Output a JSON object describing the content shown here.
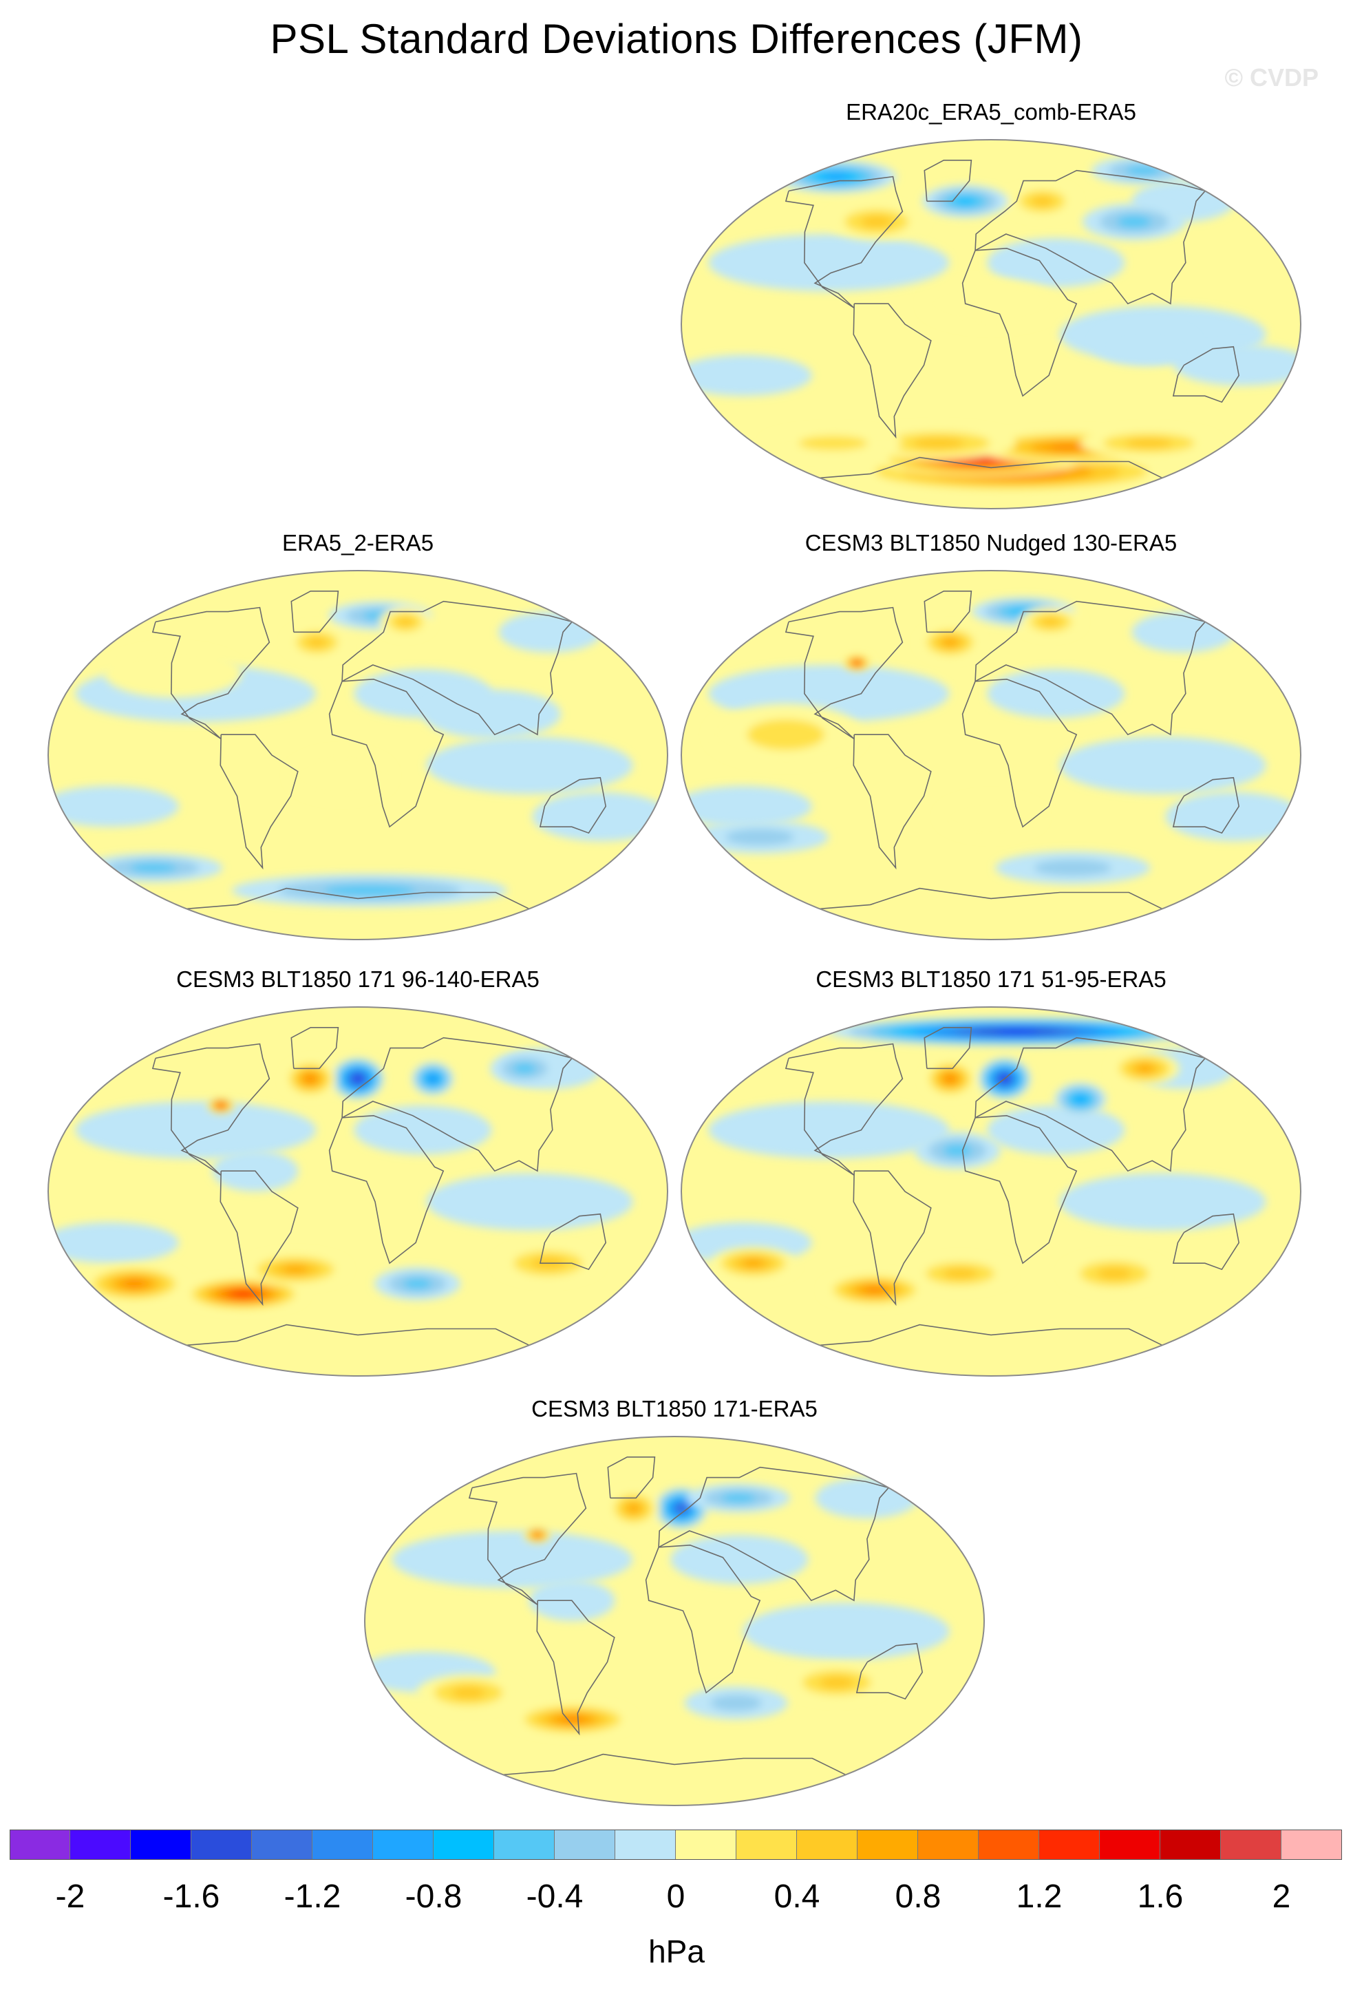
{
  "figure": {
    "title": "PSL Standard Deviations Differences (JFM)",
    "watermark": "© CVDP",
    "units": "hPa"
  },
  "panels": [
    {
      "id": "p1",
      "title": "ERA20c_ERA5_comb-ERA5",
      "blobs": [
        {
          "lon": 20,
          "lat": -72,
          "rx": 95,
          "ry": 10,
          "level": 1.2
        },
        {
          "lon": -10,
          "lat": -66,
          "rx": 60,
          "ry": 8,
          "level": 1.6
        },
        {
          "lon": 60,
          "lat": -60,
          "rx": 55,
          "ry": 8,
          "level": 0.9
        },
        {
          "lon": -40,
          "lat": -58,
          "rx": 45,
          "ry": 8,
          "level": 0.7
        },
        {
          "lon": 120,
          "lat": -58,
          "rx": 40,
          "ry": 7,
          "level": 0.5
        },
        {
          "lon": -120,
          "lat": -58,
          "rx": 40,
          "ry": 7,
          "level": 0.4
        },
        {
          "lon": -150,
          "lat": 72,
          "rx": 35,
          "ry": 8,
          "level": -0.9
        },
        {
          "lon": 160,
          "lat": 75,
          "rx": 30,
          "ry": 7,
          "level": -0.7
        },
        {
          "lon": -20,
          "lat": 60,
          "rx": 25,
          "ry": 8,
          "level": -0.8
        },
        {
          "lon": -80,
          "lat": 50,
          "rx": 28,
          "ry": 9,
          "level": 0.5
        },
        {
          "lon": 100,
          "lat": 50,
          "rx": 30,
          "ry": 9,
          "level": -0.5
        },
        {
          "lon": 40,
          "lat": 60,
          "rx": 20,
          "ry": 8,
          "level": 0.6
        },
        {
          "lon": 150,
          "lat": -20,
          "rx": 40,
          "ry": 10,
          "level": -0.3
        },
        {
          "lon": 0,
          "lat": 10,
          "rx": 40,
          "ry": 12,
          "level": 0.3
        },
        {
          "lon": 90,
          "lat": -10,
          "rx": 30,
          "ry": 10,
          "level": -0.3
        }
      ]
    },
    {
      "id": "p2",
      "title": "ERA5_2-ERA5",
      "blobs": [
        {
          "lon": -30,
          "lat": 55,
          "rx": 18,
          "ry": 8,
          "level": 0.7
        },
        {
          "lon": 20,
          "lat": 68,
          "rx": 30,
          "ry": 7,
          "level": -0.5
        },
        {
          "lon": 40,
          "lat": 65,
          "rx": 15,
          "ry": 7,
          "level": 0.6
        },
        {
          "lon": 10,
          "lat": -66,
          "rx": 80,
          "ry": 8,
          "level": -0.5
        },
        {
          "lon": -120,
          "lat": 40,
          "rx": 40,
          "ry": 12,
          "level": 0.3
        },
        {
          "lon": 150,
          "lat": -30,
          "rx": 40,
          "ry": 12,
          "level": -0.3
        },
        {
          "lon": -10,
          "lat": -10,
          "rx": 30,
          "ry": 12,
          "level": 0.3
        },
        {
          "lon": 80,
          "lat": 20,
          "rx": 40,
          "ry": 12,
          "level": -0.3
        },
        {
          "lon": -150,
          "lat": -55,
          "rx": 40,
          "ry": 7,
          "level": -0.6
        }
      ]
    },
    {
      "id": "p3",
      "title": "CESM3 BLT1850 Nudged 130-ERA5",
      "blobs": [
        {
          "lon": -30,
          "lat": 55,
          "rx": 18,
          "ry": 8,
          "level": 0.8
        },
        {
          "lon": -90,
          "lat": 45,
          "rx": 8,
          "ry": 4,
          "level": 1.4
        },
        {
          "lon": 30,
          "lat": 70,
          "rx": 30,
          "ry": 7,
          "level": -0.8
        },
        {
          "lon": 50,
          "lat": 65,
          "rx": 18,
          "ry": 7,
          "level": 0.6
        },
        {
          "lon": -120,
          "lat": 10,
          "rx": 45,
          "ry": 15,
          "level": 0.4
        },
        {
          "lon": 150,
          "lat": -30,
          "rx": 40,
          "ry": 12,
          "level": -0.3
        },
        {
          "lon": 60,
          "lat": -55,
          "rx": 45,
          "ry": 8,
          "level": -0.4
        },
        {
          "lon": -150,
          "lat": -40,
          "rx": 40,
          "ry": 8,
          "level": -0.4
        },
        {
          "lon": 0,
          "lat": -30,
          "rx": 30,
          "ry": 10,
          "level": 0.3
        }
      ]
    },
    {
      "id": "p4",
      "title": "CESM3 BLT1850 171 96-140-ERA5",
      "blobs": [
        {
          "lon": 0,
          "lat": 55,
          "rx": 15,
          "ry": 10,
          "level": -1.8
        },
        {
          "lon": -35,
          "lat": 55,
          "rx": 15,
          "ry": 9,
          "level": 0.9
        },
        {
          "lon": -90,
          "lat": 42,
          "rx": 8,
          "ry": 4,
          "level": 1.4
        },
        {
          "lon": 55,
          "lat": 55,
          "rx": 12,
          "ry": 8,
          "level": -1.1
        },
        {
          "lon": -150,
          "lat": -45,
          "rx": 30,
          "ry": 9,
          "level": 0.9
        },
        {
          "lon": -80,
          "lat": -50,
          "rx": 35,
          "ry": 8,
          "level": 1.4
        },
        {
          "lon": -40,
          "lat": -38,
          "rx": 30,
          "ry": 8,
          "level": 0.8
        },
        {
          "lon": 40,
          "lat": -45,
          "rx": 25,
          "ry": 8,
          "level": -0.7
        },
        {
          "lon": 120,
          "lat": -35,
          "rx": 30,
          "ry": 9,
          "level": 0.6
        },
        {
          "lon": 130,
          "lat": 60,
          "rx": 20,
          "ry": 8,
          "level": -0.6
        },
        {
          "lon": -60,
          "lat": 10,
          "rx": 25,
          "ry": 10,
          "level": -0.3
        }
      ]
    },
    {
      "id": "p5",
      "title": "CESM3 BLT1850 171 51-95-ERA5",
      "blobs": [
        {
          "lon": 30,
          "lat": 78,
          "rx": 110,
          "ry": 7,
          "level": -1.7
        },
        {
          "lon": 10,
          "lat": 55,
          "rx": 15,
          "ry": 10,
          "level": -1.9
        },
        {
          "lon": -30,
          "lat": 55,
          "rx": 15,
          "ry": 9,
          "level": 0.9
        },
        {
          "lon": 60,
          "lat": 45,
          "rx": 15,
          "ry": 8,
          "level": -0.9
        },
        {
          "lon": 120,
          "lat": 60,
          "rx": 20,
          "ry": 8,
          "level": 0.8
        },
        {
          "lon": -150,
          "lat": -35,
          "rx": 25,
          "ry": 8,
          "level": 0.8
        },
        {
          "lon": -80,
          "lat": -48,
          "rx": 30,
          "ry": 8,
          "level": 1.0
        },
        {
          "lon": -20,
          "lat": -40,
          "rx": 30,
          "ry": 8,
          "level": 0.6
        },
        {
          "lon": 80,
          "lat": -40,
          "rx": 30,
          "ry": 9,
          "level": 0.5
        },
        {
          "lon": -20,
          "lat": 20,
          "rx": 25,
          "ry": 9,
          "level": -0.6
        }
      ]
    },
    {
      "id": "p6",
      "title": "CESM3 BLT1850 171-ERA5",
      "blobs": [
        {
          "lon": 5,
          "lat": 55,
          "rx": 15,
          "ry": 10,
          "level": -1.5
        },
        {
          "lon": -30,
          "lat": 55,
          "rx": 15,
          "ry": 9,
          "level": 0.8
        },
        {
          "lon": -90,
          "lat": 42,
          "rx": 8,
          "ry": 4,
          "level": 1.2
        },
        {
          "lon": 50,
          "lat": 60,
          "rx": 30,
          "ry": 7,
          "level": -0.5
        },
        {
          "lon": -130,
          "lat": -35,
          "rx": 30,
          "ry": 9,
          "level": 0.7
        },
        {
          "lon": -70,
          "lat": -48,
          "rx": 35,
          "ry": 8,
          "level": 0.9
        },
        {
          "lon": 40,
          "lat": -40,
          "rx": 30,
          "ry": 8,
          "level": -0.4
        },
        {
          "lon": 100,
          "lat": -30,
          "rx": 30,
          "ry": 9,
          "level": 0.5
        },
        {
          "lon": -60,
          "lat": 10,
          "rx": 25,
          "ry": 10,
          "level": -0.3
        }
      ]
    }
  ],
  "colorbar": {
    "colors": [
      "#8a2be2",
      "#4b0aff",
      "#0000ff",
      "#2a4ddc",
      "#3b6fe0",
      "#2c8af2",
      "#1fa6ff",
      "#00bfff",
      "#55c8f5",
      "#97cfee",
      "#bee6f8",
      "#fffa9a",
      "#ffe14a",
      "#ffca25",
      "#ffaa00",
      "#ff8a00",
      "#ff5a00",
      "#ff2a00",
      "#ee0000",
      "#cc0000",
      "#e04040",
      "#ffb4b4"
    ],
    "boundaries": [
      -2.2,
      -2,
      -1.8,
      -1.6,
      -1.4,
      -1.2,
      -1,
      -0.8,
      -0.6,
      -0.4,
      -0.2,
      0,
      0.2,
      0.4,
      0.6,
      0.8,
      1,
      1.2,
      1.4,
      1.6,
      1.8,
      2,
      2.2
    ],
    "labels": [
      "-2",
      "-1.6",
      "-1.2",
      "-0.8",
      "-0.4",
      "0",
      "0.4",
      "0.8",
      "1.2",
      "1.6",
      "2"
    ]
  }
}
